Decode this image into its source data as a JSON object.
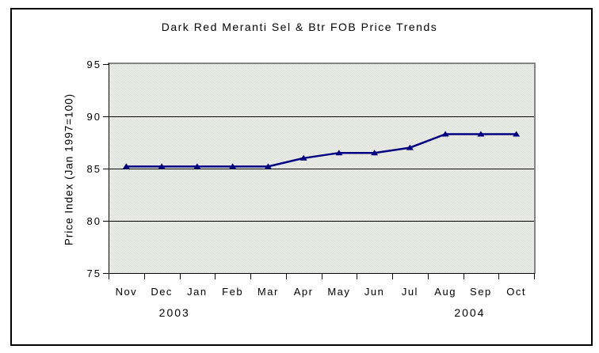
{
  "chart_data": {
    "type": "line",
    "title": "Dark Red Meranti Sel & Btr FOB Price Trends",
    "ylabel": "Price Index (Jan 1997=100)",
    "xlabel": "",
    "categories": [
      "Nov",
      "Dec",
      "Jan",
      "Feb",
      "Mar",
      "Apr",
      "May",
      "Jun",
      "Jul",
      "Aug",
      "Sep",
      "Oct"
    ],
    "year_labels": [
      {
        "text": "2003",
        "x_frac": 0.155
      },
      {
        "text": "2004",
        "x_frac": 0.849
      }
    ],
    "series": [
      {
        "values": [
          85.2,
          85.2,
          85.2,
          85.2,
          85.2,
          86.0,
          86.5,
          86.5,
          87.0,
          88.3,
          88.3,
          88.3
        ],
        "color": "#000080",
        "marker": "triangle-up",
        "line_width": 2.5
      }
    ],
    "ylim": [
      75,
      95
    ],
    "yticks": [
      75,
      80,
      85,
      90,
      95
    ],
    "grid": true,
    "legend": "none",
    "colors": {
      "line": "#000080",
      "grid": "#000000",
      "axis": "#000000",
      "plot_border": "#848484",
      "text": "#000000",
      "page_bg": "#ffffff",
      "frame_border": "#000000",
      "plot_bg_light": "#f5f5f1",
      "plot_bg_dark": "#d7dbd3"
    }
  }
}
